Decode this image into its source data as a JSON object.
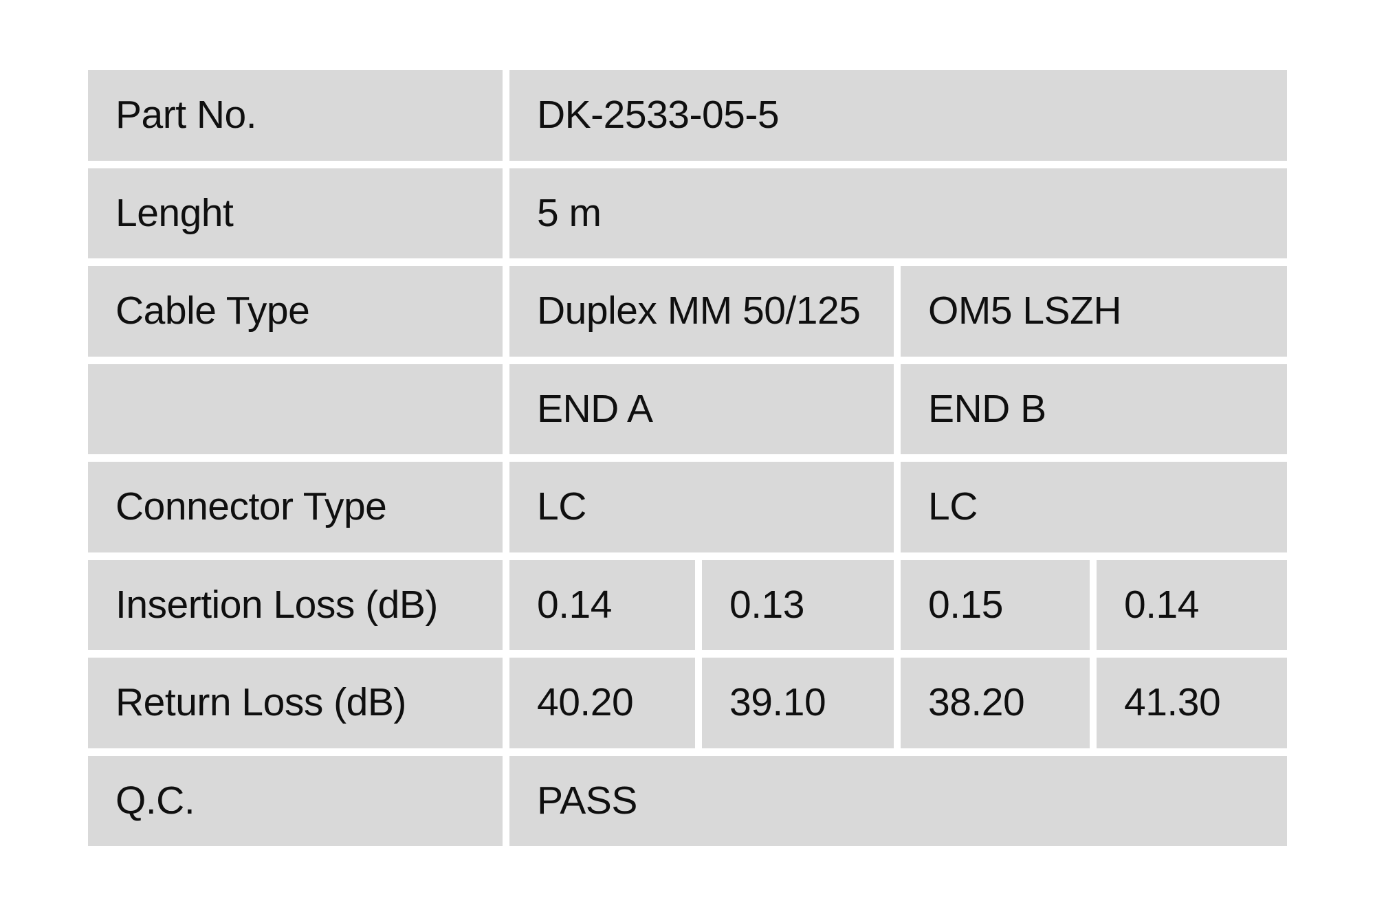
{
  "page": {
    "background_color": "#ffffff"
  },
  "table": {
    "cell_background_color": "#d9d9d9",
    "text_color": "#0f0f0f",
    "rows": {
      "part_no": {
        "label": "Part No.",
        "value": "DK-2533-05-5"
      },
      "length": {
        "label": "Lenght",
        "value": "5 m"
      },
      "cable_type": {
        "label": "Cable Type",
        "value_a": "Duplex MM 50/125",
        "value_b": "OM5 LSZH"
      },
      "ends": {
        "label": "",
        "end_a": "END A",
        "end_b": "END B"
      },
      "connector_type": {
        "label": "Connector Type",
        "end_a_value": "LC",
        "end_b_value": "LC"
      },
      "insertion_loss": {
        "label": "Insertion Loss (dB)",
        "values": [
          "0.14",
          "0.13",
          "0.15",
          "0.14"
        ]
      },
      "return_loss": {
        "label": "Return Loss (dB)",
        "values": [
          "40.20",
          "39.10",
          "38.20",
          "41.30"
        ]
      },
      "qc": {
        "label": "Q.C.",
        "value": "PASS"
      }
    }
  }
}
